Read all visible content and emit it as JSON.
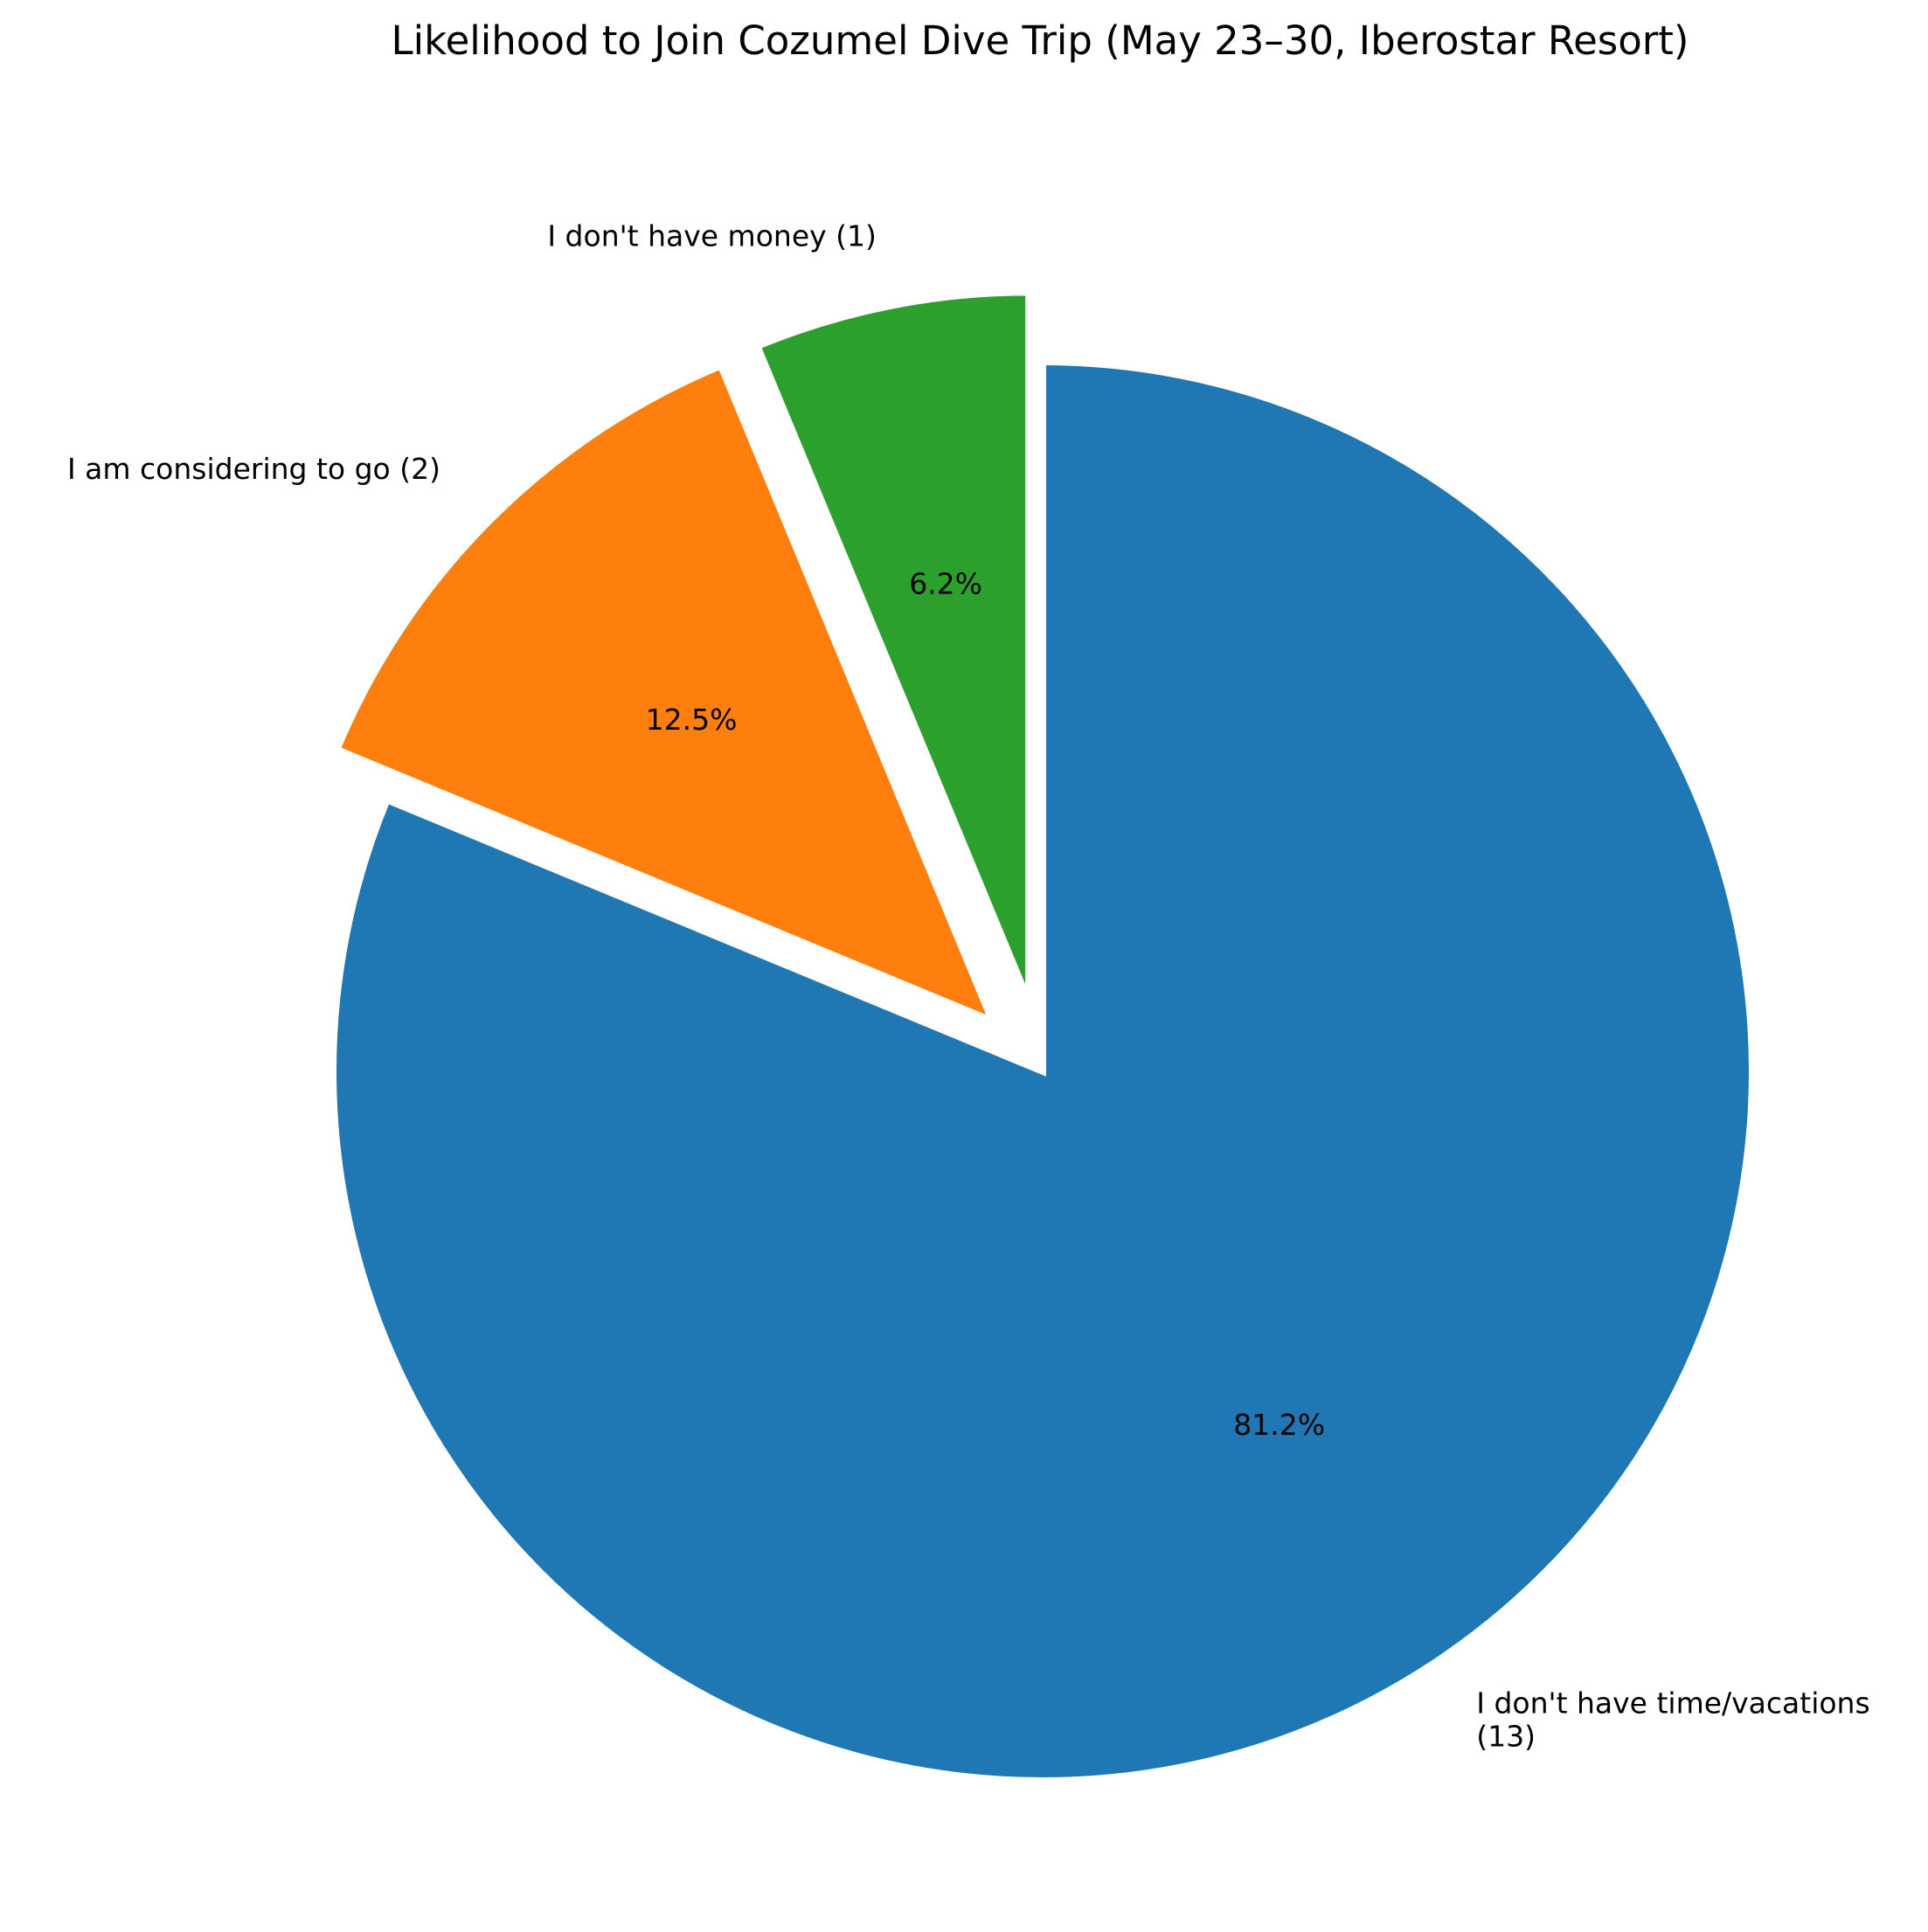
{
  "chart_data": {
    "type": "pie",
    "title": "Likelihood to Join Cozumel Dive Trip (May 23–30, Iberostar Resort)",
    "slices": [
      {
        "label_lines": [
          "I don't have time/vacations",
          "(13)"
        ],
        "value": 13,
        "pct_label": "81.2%",
        "color": "#1f77b4",
        "exploded": false
      },
      {
        "label_lines": [
          "I am considering to go (2)"
        ],
        "value": 2,
        "pct_label": "12.5%",
        "color": "#ff7f0e",
        "exploded": true
      },
      {
        "label_lines": [
          "I don't have money (1)"
        ],
        "value": 1,
        "pct_label": "6.2%",
        "color": "#2ca02c",
        "exploded": true
      }
    ],
    "start_angle": "top",
    "direction": "clockwise",
    "edge_color": "#ffffff"
  }
}
